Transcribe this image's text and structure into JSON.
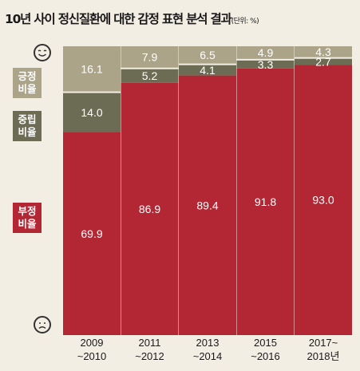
{
  "title": "10년 사이 정신질환에 대한 감정 표현 분석 결과",
  "unit": "(단위: %)",
  "legend": {
    "positive": [
      "긍정",
      "비율"
    ],
    "neutral": [
      "중립",
      "비율"
    ],
    "negative": [
      "부정",
      "비율"
    ]
  },
  "icons": {
    "top": "smile-face-icon",
    "bottom": "sad-face-icon"
  },
  "colors": {
    "negative": "#b32633",
    "neutral": "#6c6c55",
    "positive": "#aba489"
  },
  "chart_data": {
    "type": "bar",
    "stacked": true,
    "categories": [
      [
        "2009",
        "~2010"
      ],
      [
        "2011",
        "~2012"
      ],
      [
        "2013",
        "~2014"
      ],
      [
        "2015",
        "~2016"
      ],
      [
        "2017~",
        "2018년"
      ]
    ],
    "series": [
      {
        "name": "부정 비율",
        "values": [
          69.9,
          86.9,
          89.4,
          91.8,
          93.0
        ],
        "labels": [
          "69.9",
          "86.9",
          "89.4",
          "91.8",
          "93.0"
        ]
      },
      {
        "name": "중립 비율",
        "values": [
          14.0,
          5.2,
          4.1,
          3.3,
          2.7
        ],
        "labels": [
          "14.0",
          "5.2",
          "4.1",
          "3.3",
          "2.7"
        ]
      },
      {
        "name": "긍정 비율",
        "values": [
          16.1,
          7.9,
          6.5,
          4.9,
          4.3
        ],
        "labels": [
          "16.1",
          "7.9",
          "6.5",
          "4.9",
          "4.3"
        ]
      }
    ],
    "ylim": [
      0,
      100
    ]
  }
}
